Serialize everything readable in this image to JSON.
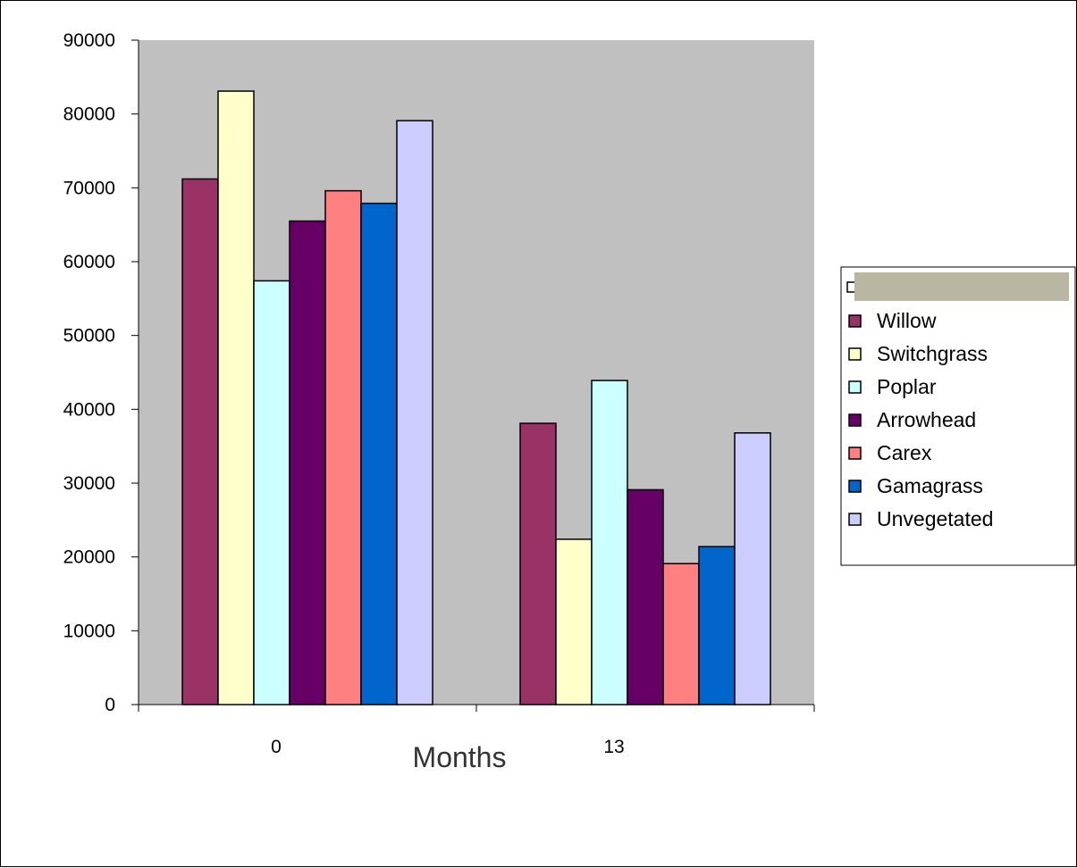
{
  "chart_data": {
    "type": "bar",
    "xlabel": "Months",
    "ylabel": "",
    "categories": [
      "0",
      "13"
    ],
    "ylim": [
      0,
      90000
    ],
    "yticks": [
      0,
      10000,
      20000,
      30000,
      40000,
      50000,
      60000,
      70000,
      80000,
      90000
    ],
    "plot_background": "#c0c0c0",
    "grid": false,
    "legend_position": "right",
    "legend_header_redaction_color": "#b9b7a2",
    "series": [
      {
        "name": "Willow",
        "color": "#993366",
        "values": [
          71200,
          38100
        ]
      },
      {
        "name": "Switchgrass",
        "color": "#ffffcc",
        "values": [
          83100,
          22400
        ]
      },
      {
        "name": "Poplar",
        "color": "#ccffff",
        "values": [
          57400,
          43900
        ]
      },
      {
        "name": "Arrowhead",
        "color": "#660066",
        "values": [
          65500,
          29100
        ]
      },
      {
        "name": "Carex",
        "color": "#ff8080",
        "values": [
          69600,
          19100
        ]
      },
      {
        "name": "Gamagrass",
        "color": "#0066cc",
        "values": [
          67900,
          21400
        ]
      },
      {
        "name": "Unvegetated",
        "color": "#ccccff",
        "values": [
          79100,
          36800
        ]
      }
    ]
  }
}
